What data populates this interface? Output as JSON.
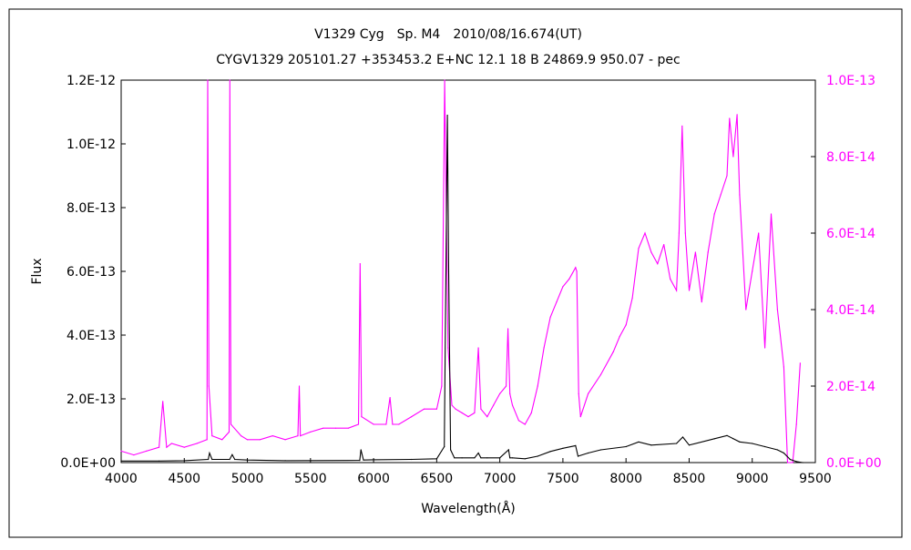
{
  "chart_data": {
    "type": "line",
    "title": "V1329 Cyg　Sp. M4　2010/08/16.674(UT)",
    "subtitle": "CYGV1329 205101.27 +353453.2 E+NC 12.1 18 B 24869.9 950.07 - pec",
    "xlabel": "Wavelength(Å)",
    "ylabel": "Flux",
    "xlim": [
      4000,
      9500
    ],
    "ylim": [
      0,
      1.2e-12
    ],
    "y2lim": [
      0,
      1e-13
    ],
    "x_ticks": [
      "4000",
      "4500",
      "5000",
      "5500",
      "6000",
      "6500",
      "7000",
      "7500",
      "8000",
      "8500",
      "9000",
      "9500"
    ],
    "y_ticks": [
      "0.0E+00",
      "2.0E-13",
      "4.0E-13",
      "6.0E-13",
      "8.0E-13",
      "1.0E-12",
      "1.2E-12"
    ],
    "y2_ticks": [
      "0.0E+00",
      "2.0E-14",
      "4.0E-14",
      "6.0E-14",
      "8.0E-14",
      "1.0E-13"
    ],
    "grid": false,
    "series": [
      {
        "axis": "left",
        "color": "#000000",
        "x": [
          4000,
          4300,
          4500,
          4690,
          4700,
          4720,
          4860,
          4880,
          4900,
          5000,
          5300,
          5890,
          5900,
          5920,
          6000,
          6300,
          6500,
          6560,
          6585,
          6595,
          6610,
          6640,
          6700,
          6800,
          6830,
          6850,
          6900,
          7000,
          7070,
          7080,
          7100,
          7200,
          7300,
          7400,
          7500,
          7600,
          7620,
          7700,
          7800,
          8000,
          8100,
          8200,
          8400,
          8450,
          8500,
          8700,
          8800,
          8850,
          8900,
          9000,
          9100,
          9200,
          9250,
          9300,
          9350,
          9400
        ],
        "y": [
          5e-15,
          5e-15,
          6e-15,
          1e-14,
          3e-14,
          1e-14,
          1e-14,
          2.5e-14,
          1e-14,
          8e-15,
          6e-15,
          7e-15,
          4e-14,
          8e-15,
          9e-15,
          1e-14,
          1.2e-14,
          5e-14,
          1.09e-12,
          6e-13,
          4e-14,
          1.5e-14,
          1.5e-14,
          1.5e-14,
          3e-14,
          1.5e-14,
          1.5e-14,
          1.5e-14,
          4e-14,
          1.5e-14,
          1.5e-14,
          1.2e-14,
          2e-14,
          3.5e-14,
          4.5e-14,
          5.3e-14,
          2e-14,
          3e-14,
          4e-14,
          5e-14,
          6.5e-14,
          5.5e-14,
          6e-14,
          8e-14,
          5.5e-14,
          7.5e-14,
          8.5e-14,
          7.5e-14,
          6.5e-14,
          6e-14,
          5e-14,
          4e-14,
          3e-14,
          1e-14,
          3e-15,
          0
        ]
      },
      {
        "axis": "right",
        "color": "#ff00ff",
        "x": [
          4000,
          4100,
          4200,
          4300,
          4330,
          4360,
          4400,
          4500,
          4600,
          4680,
          4686,
          4695,
          4720,
          4800,
          4855,
          4861,
          4870,
          4950,
          5000,
          5100,
          5200,
          5300,
          5400,
          5411,
          5420,
          5500,
          5600,
          5700,
          5800,
          5880,
          5893,
          5905,
          6000,
          6100,
          6130,
          6150,
          6200,
          6300,
          6400,
          6500,
          6540,
          6563,
          6590,
          6620,
          6650,
          6700,
          6750,
          6800,
          6830,
          6850,
          6900,
          6950,
          7000,
          7050,
          7065,
          7080,
          7100,
          7150,
          7200,
          7250,
          7300,
          7350,
          7400,
          7450,
          7500,
          7550,
          7600,
          7610,
          7625,
          7640,
          7700,
          7800,
          7900,
          7950,
          8000,
          8050,
          8100,
          8150,
          8200,
          8250,
          8300,
          8350,
          8400,
          8420,
          8445,
          8470,
          8500,
          8550,
          8600,
          8650,
          8700,
          8750,
          8800,
          8820,
          8850,
          8880,
          8900,
          8950,
          9000,
          9050,
          9100,
          9150,
          9200,
          9250,
          9280,
          9300,
          9320,
          9350,
          9380
        ],
        "y": [
          3e-15,
          2e-15,
          3e-15,
          4e-15,
          1.6e-14,
          4e-15,
          5e-15,
          4e-15,
          5e-15,
          6e-15,
          1e-13,
          2e-14,
          7e-15,
          6e-15,
          8e-15,
          1e-13,
          1e-14,
          7e-15,
          6e-15,
          6e-15,
          7e-15,
          6e-15,
          7e-15,
          2e-14,
          7e-15,
          8e-15,
          9e-15,
          9e-15,
          9e-15,
          1e-14,
          5.2e-14,
          1.2e-14,
          1e-14,
          1e-14,
          1.7e-14,
          1e-14,
          1e-14,
          1.2e-14,
          1.4e-14,
          1.4e-14,
          2e-14,
          1e-13,
          3e-14,
          1.5e-14,
          1.4e-14,
          1.3e-14,
          1.2e-14,
          1.3e-14,
          3e-14,
          1.4e-14,
          1.2e-14,
          1.5e-14,
          1.8e-14,
          2e-14,
          3.5e-14,
          1.8e-14,
          1.5e-14,
          1.1e-14,
          1e-14,
          1.3e-14,
          2e-14,
          3e-14,
          3.8e-14,
          4.2e-14,
          4.6e-14,
          4.8e-14,
          5.1e-14,
          5e-14,
          1.8e-14,
          1.2e-14,
          1.8e-14,
          2.3e-14,
          2.9e-14,
          3.3e-14,
          3.6e-14,
          4.3e-14,
          5.6e-14,
          6e-14,
          5.5e-14,
          5.2e-14,
          5.7e-14,
          4.8e-14,
          4.5e-14,
          6e-14,
          8.8e-14,
          6e-14,
          4.5e-14,
          5.5e-14,
          4.2e-14,
          5.5e-14,
          6.5e-14,
          7e-14,
          7.5e-14,
          9e-14,
          8e-14,
          9.1e-14,
          7e-14,
          4e-14,
          5e-14,
          6e-14,
          3e-14,
          6.5e-14,
          4e-14,
          2.5e-14,
          0,
          0,
          0,
          1e-14,
          2.6e-14
        ]
      }
    ]
  }
}
